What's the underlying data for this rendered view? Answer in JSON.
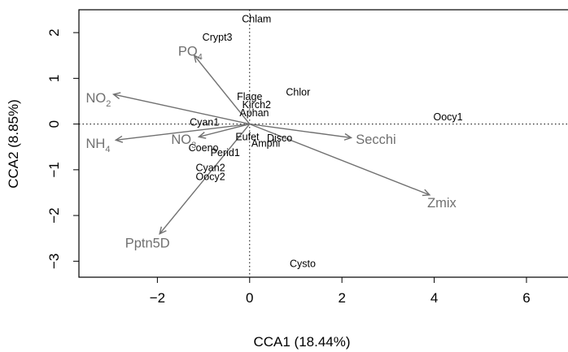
{
  "chart_data": {
    "type": "scatter",
    "title": "",
    "xlabel": "CCA1 (18.44%)",
    "ylabel": "CCA2 (8.85%)",
    "xlim": [
      -3.7,
      6.9
    ],
    "ylim": [
      -3.35,
      2.5
    ],
    "x_ticks": [
      "−2",
      "0",
      "2",
      "4",
      "6"
    ],
    "x_tick_values": [
      -2,
      0,
      2,
      4,
      6
    ],
    "y_ticks": [
      "−3",
      "−2",
      "−1",
      "0",
      "1",
      "2"
    ],
    "y_tick_values": [
      -3,
      -2,
      -1,
      0,
      1,
      2
    ],
    "reference_lines": {
      "x": 0,
      "y": 0,
      "style": "dotted"
    },
    "colors": {
      "species": "#000000",
      "environment": "#707070"
    },
    "species": [
      {
        "name": "Chlam",
        "x": 0.15,
        "y": 2.3
      },
      {
        "name": "Crypt3",
        "x": -0.7,
        "y": 1.9
      },
      {
        "name": "Chlor",
        "x": 1.05,
        "y": 0.7
      },
      {
        "name": "Flage",
        "x": 0.0,
        "y": 0.6
      },
      {
        "name": "Kirch2",
        "x": 0.15,
        "y": 0.43
      },
      {
        "name": "Aphan",
        "x": 0.1,
        "y": 0.25
      },
      {
        "name": "Oocy1",
        "x": 4.3,
        "y": 0.16
      },
      {
        "name": "Cyan1",
        "x": -0.98,
        "y": 0.04
      },
      {
        "name": "Eufet",
        "x": -0.05,
        "y": -0.28
      },
      {
        "name": "Disco",
        "x": 0.65,
        "y": -0.3
      },
      {
        "name": "Amphi",
        "x": 0.35,
        "y": -0.42
      },
      {
        "name": "Coeno",
        "x": -1.0,
        "y": -0.52
      },
      {
        "name": "Perid1",
        "x": -0.53,
        "y": -0.62
      },
      {
        "name": "Cyan2",
        "x": -0.85,
        "y": -0.95
      },
      {
        "name": "Oocy2",
        "x": -0.85,
        "y": -1.15
      },
      {
        "name": "Cysto",
        "x": 1.15,
        "y": -3.05
      }
    ],
    "env_vectors": [
      {
        "name": "PO",
        "sub": "4",
        "x": -1.2,
        "y": 1.5,
        "label_x": -1.55,
        "label_y": 1.6
      },
      {
        "name": "NO",
        "sub": "2",
        "x": -2.95,
        "y": 0.65,
        "label_x": -3.55,
        "label_y": 0.58
      },
      {
        "name": "NO",
        "sub": "3",
        "x": -1.1,
        "y": -0.28,
        "label_x": -1.7,
        "label_y": -0.33
      },
      {
        "name": "NH",
        "sub": "4",
        "x": -2.9,
        "y": -0.35,
        "label_x": -3.55,
        "label_y": -0.42
      },
      {
        "name": "Secchi",
        "x": 2.2,
        "y": -0.3,
        "label_x": 2.3,
        "label_y": -0.33
      },
      {
        "name": "Zmix",
        "x": 3.9,
        "y": -1.55,
        "label_x": 3.85,
        "label_y": -1.72
      },
      {
        "name": "Pptn5D",
        "x": -1.95,
        "y": -2.4,
        "label_x": -2.7,
        "label_y": -2.6
      }
    ]
  }
}
